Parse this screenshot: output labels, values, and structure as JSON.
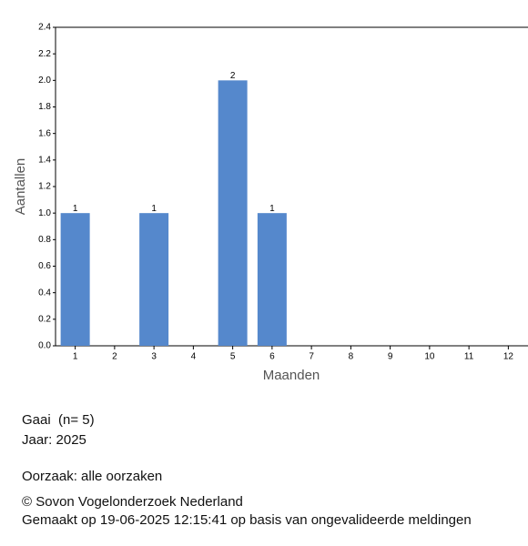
{
  "chart_data": {
    "type": "bar",
    "x_label": "Maanden",
    "y_label": "Aantallen",
    "categories": [
      "1",
      "2",
      "3",
      "4",
      "5",
      "6",
      "7",
      "8",
      "9",
      "10",
      "11",
      "12"
    ],
    "values": [
      1,
      null,
      1,
      null,
      2,
      1,
      null,
      null,
      null,
      null,
      null,
      null
    ],
    "color": "#5588cc",
    "ylim": [
      0,
      2.4
    ],
    "yticks": [
      {
        "value": 0,
        "label": "0.0"
      },
      {
        "value": 0.2,
        "label": "0.2"
      },
      {
        "value": 0.4,
        "label": "0.4"
      },
      {
        "value": 0.6,
        "label": "0.6"
      },
      {
        "value": 0.8,
        "label": "0.8"
      },
      {
        "value": 1,
        "label": "1.0"
      },
      {
        "value": 1.2,
        "label": "1.2"
      },
      {
        "value": 1.4,
        "label": "1.4"
      },
      {
        "value": 1.6,
        "label": "1.6"
      },
      {
        "value": 1.8,
        "label": "1.8"
      },
      {
        "value": 2,
        "label": "2.0"
      },
      {
        "value": 2.2,
        "label": "2.2"
      },
      {
        "value": 2.4,
        "label": "2.4"
      }
    ],
    "grid": false
  },
  "info": [
    "Gaai  (n= 5)",
    "Jaar: 2025",
    "Oorzaak: alle oorzaken",
    "© Sovon Vogelonderzoek Nederland",
    "Gemaakt op 19-06-2025 12:15:41 op basis van ongevalideerde meldingen"
  ]
}
